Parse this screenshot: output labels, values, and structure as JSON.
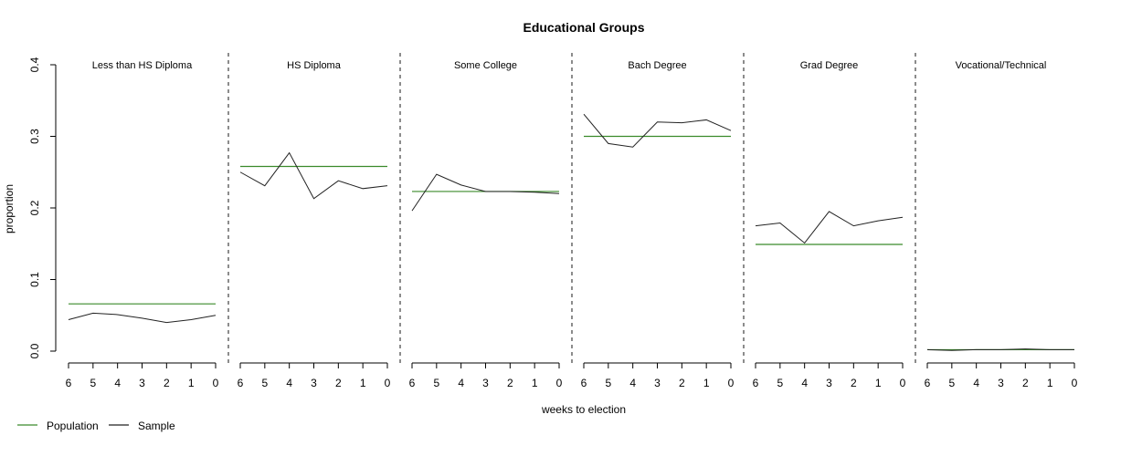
{
  "chart_data": {
    "type": "line",
    "title": "Educational Groups",
    "xlabel": "weeks to election",
    "ylabel": "proportion",
    "x": [
      6,
      5,
      4,
      3,
      2,
      1,
      0
    ],
    "x_ticks": [
      "6",
      "5",
      "4",
      "3",
      "2",
      "1",
      "0"
    ],
    "ylim": [
      0,
      0.4
    ],
    "y_ticks": [
      "0.0",
      "0.1",
      "0.2",
      "0.3",
      "0.4"
    ],
    "legend": {
      "placement": "bottom-left",
      "entries": [
        {
          "name": "Population",
          "color": "#3a8a2a"
        },
        {
          "name": "Sample",
          "color": "#222222"
        }
      ]
    },
    "panels": [
      {
        "title": "Less than HS Diploma",
        "population": 0.066,
        "sample": [
          0.044,
          0.053,
          0.051,
          0.046,
          0.04,
          0.044,
          0.05
        ]
      },
      {
        "title": "HS Diploma",
        "population": 0.258,
        "sample": [
          0.25,
          0.231,
          0.277,
          0.213,
          0.238,
          0.227,
          0.231
        ]
      },
      {
        "title": "Some College",
        "population": 0.223,
        "sample": [
          0.196,
          0.247,
          0.232,
          0.223,
          0.223,
          0.222,
          0.22
        ]
      },
      {
        "title": "Bach Degree",
        "population": 0.3,
        "sample": [
          0.331,
          0.29,
          0.285,
          0.32,
          0.319,
          0.323,
          0.308
        ]
      },
      {
        "title": "Grad Degree",
        "population": 0.149,
        "sample": [
          0.175,
          0.179,
          0.151,
          0.195,
          0.175,
          0.182,
          0.187
        ]
      },
      {
        "title": "Vocational/Technical",
        "population": 0.002,
        "sample": [
          0.002,
          0.001,
          0.002,
          0.002,
          0.003,
          0.002,
          0.002
        ]
      }
    ]
  }
}
